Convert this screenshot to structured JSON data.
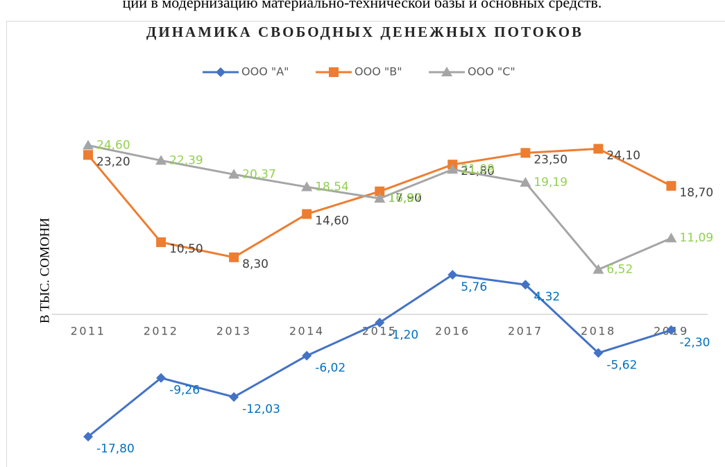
{
  "heading": "ций в модернизацию материально-технической базы и основных средств.",
  "chart_data": {
    "type": "line",
    "title": "ДИНАМИКА СВОБОДНЫХ ДЕНЕЖНЫХ ПОТОКОВ",
    "y_label": "В ТЫС. СОМОНИ",
    "categories": [
      "2011",
      "2012",
      "2013",
      "2014",
      "2015",
      "2016",
      "2017",
      "2018",
      "2019"
    ],
    "ylim": [
      -20,
      30
    ],
    "legend": "top",
    "series": [
      {
        "name": "ООО \"А\"",
        "color": "#4472c4",
        "label_color": "#0070c0",
        "marker": "diamond",
        "values": [
          -17.8,
          -9.26,
          -12.03,
          -6.02,
          -1.2,
          5.76,
          4.32,
          -5.62,
          -2.3
        ],
        "value_labels": [
          "-17,80",
          "-9,26",
          "-12,03",
          "-6,02",
          "-1,20",
          "5,76",
          "4,32",
          "-5,62",
          "-2,30"
        ]
      },
      {
        "name": "ООО \"В\"",
        "color": "#ed7d31",
        "label_color": "#404040",
        "marker": "square",
        "values": [
          23.2,
          10.5,
          8.3,
          14.6,
          17.9,
          21.8,
          23.5,
          24.1,
          18.7
        ],
        "value_labels": [
          "23,20",
          "10,50",
          "8,30",
          "14,60",
          "17,90",
          "21,80",
          "23,50",
          "24,10",
          "18,70"
        ]
      },
      {
        "name": "ООО \"С\"",
        "color": "#a5a5a5",
        "label_color": "#92d050",
        "marker": "triangle",
        "values": [
          24.6,
          22.39,
          20.37,
          18.54,
          16.87,
          21.09,
          19.19,
          6.52,
          11.09
        ],
        "value_labels": [
          "24,60",
          "22,39",
          "20,37",
          "18,54",
          "16,87",
          "21,09",
          "19,19",
          "6,52",
          "11,09"
        ]
      }
    ]
  }
}
